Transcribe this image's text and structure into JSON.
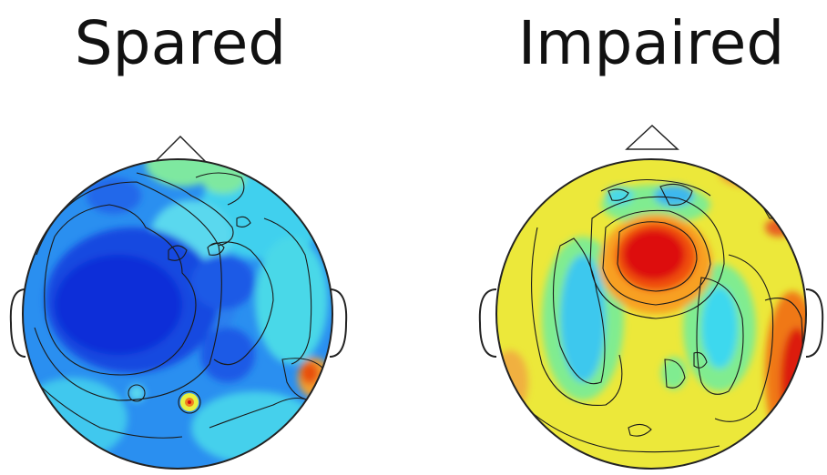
{
  "panels": [
    {
      "title": "Spared"
    },
    {
      "title": "Impaired"
    }
  ],
  "colors": {
    "dark_blue": "#0a2fd8",
    "blue": "#1e6cf0",
    "light_blue": "#2fa8f0",
    "cyan": "#3ee0e8",
    "green": "#7ef08a",
    "yellow": "#e8f040",
    "orange": "#f89a20",
    "red": "#e01010",
    "contour": "#1a1a1a"
  }
}
